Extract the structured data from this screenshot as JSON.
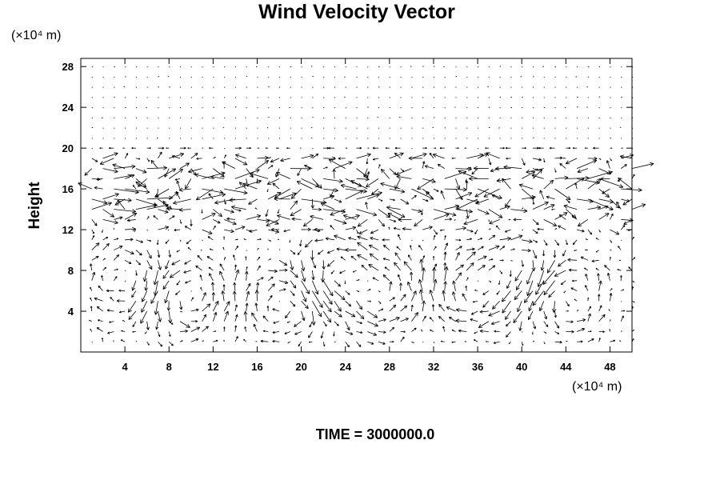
{
  "chart_data": {
    "type": "quiver",
    "title": "Wind Velocity Vector",
    "xlabel": "",
    "ylabel": "Height",
    "x_unit": "(×10⁴ m)",
    "y_unit": "(×10⁴ m)",
    "xlim": [
      0,
      50
    ],
    "ylim": [
      0,
      28.8
    ],
    "xticks": [
      4,
      8,
      12,
      16,
      20,
      24,
      28,
      32,
      36,
      40,
      44,
      48
    ],
    "yticks": [
      4,
      8,
      12,
      16,
      20,
      24,
      28
    ],
    "grid": false,
    "legend": "none",
    "annotation": "TIME = 3000000.0",
    "field": {
      "x_spacing": 1,
      "y_spacing": 1,
      "x_count": 50,
      "y_count": 28,
      "description": "Vector field sampled on a regular grid; arrow length proportional to speed. Stagnant above height 20; strong turbulent flow between 12 and 20; convective cells with circulating eddies below 12."
    },
    "colors": {
      "arrow": "#000000",
      "frame": "#000000"
    }
  }
}
